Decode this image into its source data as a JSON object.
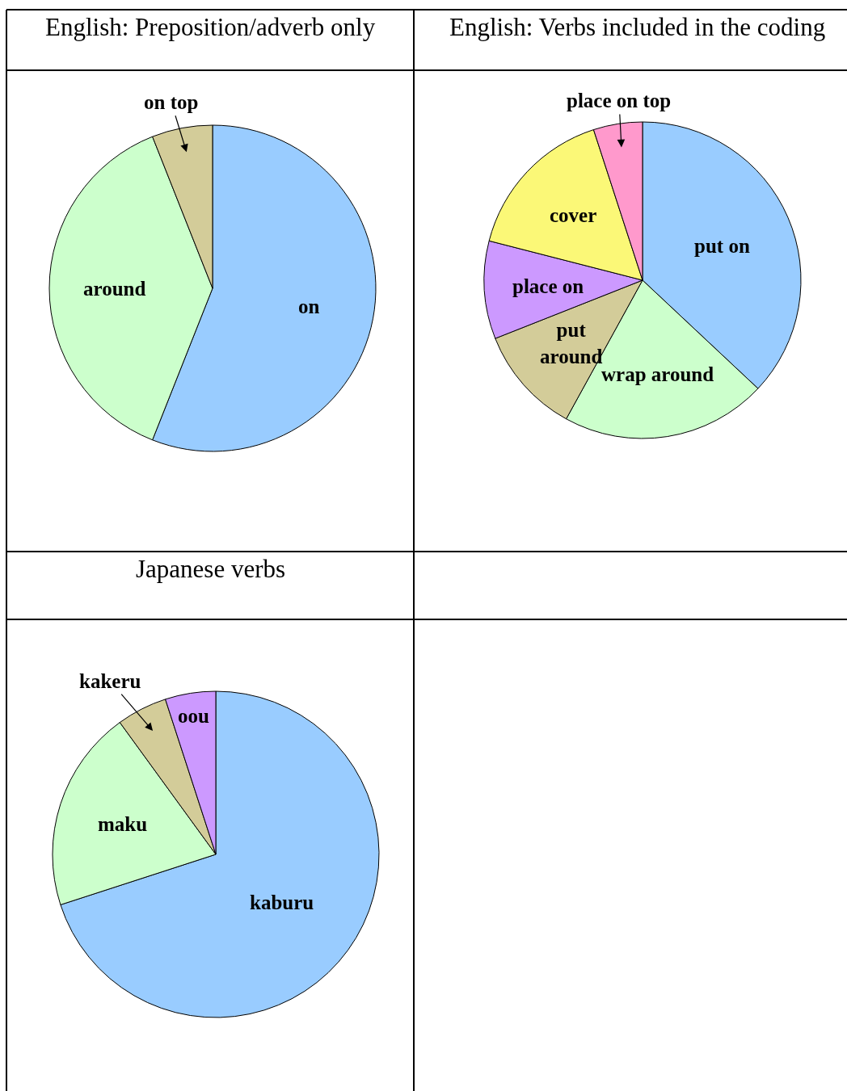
{
  "chart_data": [
    {
      "type": "pie",
      "title": "English: Preposition/adverb only",
      "categories": [
        "on",
        "around",
        "on top"
      ],
      "values": [
        56,
        38,
        6
      ],
      "colors": [
        "#99ccff",
        "#ccffcc",
        "#d3cc99"
      ]
    },
    {
      "type": "pie",
      "title": "English: Verbs included in the coding",
      "categories": [
        "put on",
        "wrap around",
        "put around",
        "place on",
        "cover",
        "place on top"
      ],
      "values": [
        37,
        21,
        11,
        10,
        16,
        5
      ],
      "colors": [
        "#99ccff",
        "#ccffcc",
        "#d3cc99",
        "#cc99ff",
        "#fbf877",
        "#ff99cc"
      ]
    },
    {
      "type": "pie",
      "title": "Japanese verbs",
      "categories": [
        "kaburu",
        "maku",
        "kakeru",
        "oou"
      ],
      "values": [
        70,
        20,
        5,
        5
      ],
      "colors": [
        "#99ccff",
        "#ccffcc",
        "#d3cc99",
        "#cc99ff"
      ]
    }
  ]
}
